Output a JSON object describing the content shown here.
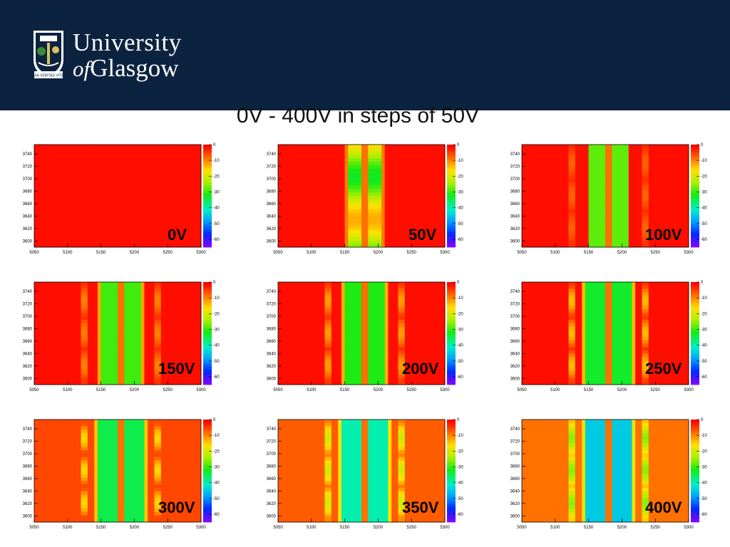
{
  "header": {
    "logo_line1": "University",
    "logo_line2_prefix": "of",
    "logo_line2_main": "Glasgow",
    "motto": "VIA VERITAS VITA",
    "background": "#0c2340"
  },
  "slide": {
    "title": "0V - 400V in steps of 50V"
  },
  "plot_axes": {
    "x_ticks": [
      "5050",
      "5100",
      "5150",
      "5200",
      "5250",
      "5300"
    ],
    "y_ticks": [
      "3740",
      "3720",
      "3700",
      "3680",
      "3660",
      "3640",
      "3620",
      "3600"
    ],
    "colorbar_ticks": [
      "0",
      "-10",
      "-20",
      "-30",
      "-40",
      "-50",
      "-60"
    ]
  },
  "panels": [
    {
      "label": "0V",
      "voltage": 0
    },
    {
      "label": "50V",
      "voltage": 50
    },
    {
      "label": "100V",
      "voltage": 100
    },
    {
      "label": "150V",
      "voltage": 150
    },
    {
      "label": "200V",
      "voltage": 200
    },
    {
      "label": "250V",
      "voltage": 250
    },
    {
      "label": "300V",
      "voltage": 300
    },
    {
      "label": "350V",
      "voltage": 350
    },
    {
      "label": "400V",
      "voltage": 400
    }
  ]
}
